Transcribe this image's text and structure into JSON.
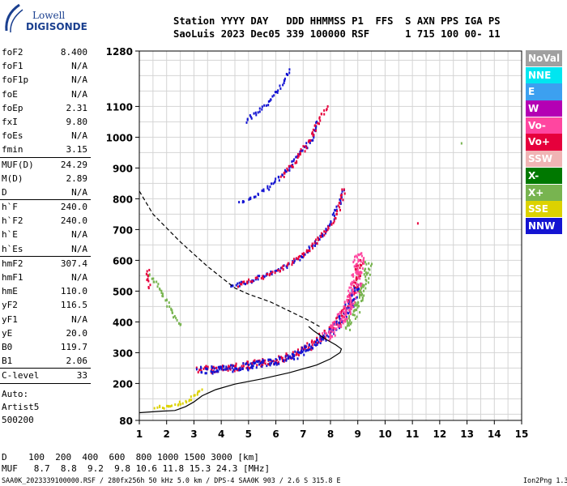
{
  "logo": {
    "line1": "Lowell",
    "line2": "DIGISONDE"
  },
  "header": {
    "line1": "Station YYYY DAY   DDD HHMMSS P1  FFS  S AXN PPS IGA PS",
    "line2": "SaoLuis 2023 Dec05 339 100000 RSF      1 715 100 00- 11"
  },
  "params": [
    {
      "group": [
        {
          "label": "foF2",
          "value": "8.400"
        },
        {
          "label": "foF1",
          "value": "N/A"
        },
        {
          "label": "foF1p",
          "value": "N/A"
        },
        {
          "label": "foE",
          "value": "N/A"
        },
        {
          "label": "foEp",
          "value": "2.31"
        },
        {
          "label": "fxI",
          "value": "9.80"
        },
        {
          "label": "foEs",
          "value": "N/A"
        },
        {
          "label": "fmin",
          "value": "3.15"
        }
      ]
    },
    {
      "group": [
        {
          "label": "MUF(D)",
          "value": "24.29"
        },
        {
          "label": "M(D)",
          "value": "2.89"
        },
        {
          "label": "D",
          "value": "N/A"
        }
      ]
    },
    {
      "group": [
        {
          "label": "h`F",
          "value": "240.0"
        },
        {
          "label": "h`F2",
          "value": "240.0"
        },
        {
          "label": "h`E",
          "value": "N/A"
        },
        {
          "label": "h`Es",
          "value": "N/A"
        }
      ]
    },
    {
      "group": [
        {
          "label": "hmF2",
          "value": "307.4"
        },
        {
          "label": "hmF1",
          "value": "N/A"
        },
        {
          "label": "hmE",
          "value": "110.0"
        },
        {
          "label": "yF2",
          "value": "116.5"
        },
        {
          "label": "yF1",
          "value": "N/A"
        },
        {
          "label": "yE",
          "value": "20.0"
        },
        {
          "label": "B0",
          "value": "119.7"
        },
        {
          "label": "B1",
          "value": "2.06"
        }
      ]
    },
    {
      "group": [
        {
          "label": "C-level",
          "value": "33"
        }
      ]
    }
  ],
  "auto": {
    "line1": "Auto:",
    "line2": "Artist5",
    "line3": "500200"
  },
  "dmuf": {
    "d_line": "D    100  200  400  600  800 1000 1500 3000 [km]",
    "muf_line": "MUF   8.7  8.8  9.2  9.8 10.6 11.8 15.3 24.3 [MHz]"
  },
  "footer": {
    "text": "SAA0K_2023339100000.RSF / 280fx256h 50 kHz 5.0 km / DPS-4 SAA0K 903 / 2.6 S 315.8 E",
    "version": "Ion2Png 1.3.17"
  },
  "legend": [
    {
      "label": "NoVal",
      "color": "#a0a0a0"
    },
    {
      "label": "NNE",
      "color": "#00e6f0"
    },
    {
      "label": "E",
      "color": "#3ca0f0"
    },
    {
      "label": "W",
      "color": "#b400b4"
    },
    {
      "label": "Vo-",
      "color": "#ff46a0"
    },
    {
      "label": "Vo+",
      "color": "#e6003c"
    },
    {
      "label": "SSW",
      "color": "#f0b4b4"
    },
    {
      "label": "X-",
      "color": "#007800"
    },
    {
      "label": "X+",
      "color": "#78b450"
    },
    {
      "label": "SSE",
      "color": "#dcd200"
    },
    {
      "label": "NNW",
      "color": "#1414d2"
    }
  ],
  "chart_data": {
    "type": "scatter",
    "xlim": [
      1,
      15
    ],
    "ylim": [
      80,
      1280
    ],
    "xticks": [
      1,
      2,
      3,
      4,
      5,
      6,
      7,
      8,
      9,
      10,
      11,
      12,
      13,
      14,
      15
    ],
    "yticks": [
      80,
      200,
      300,
      400,
      500,
      600,
      700,
      800,
      900,
      1000,
      1100,
      1280
    ],
    "grid": true,
    "traces": [
      {
        "name": "",
        "color": "#e6003c",
        "spread": 2,
        "points": [
          [
            3.2,
            245
          ],
          [
            4,
            247
          ],
          [
            5,
            258
          ],
          [
            6,
            275
          ],
          [
            6.8,
            295
          ],
          [
            7.2,
            320
          ],
          [
            7.6,
            345
          ],
          [
            8,
            375
          ],
          [
            8.3,
            400
          ],
          [
            8.6,
            440
          ],
          [
            8.8,
            480
          ],
          [
            9.0,
            540
          ],
          [
            9.1,
            600
          ]
        ]
      },
      {
        "name": "",
        "color": "#1414d2",
        "spread": 2,
        "points": [
          [
            3.2,
            242
          ],
          [
            4,
            245
          ],
          [
            5,
            256
          ],
          [
            6,
            272
          ],
          [
            6.8,
            292
          ],
          [
            7.3,
            322
          ],
          [
            7.8,
            350
          ],
          [
            8.2,
            385
          ],
          [
            8.5,
            420
          ],
          [
            8.8,
            470
          ],
          [
            9.0,
            520
          ]
        ]
      },
      {
        "name": "",
        "color": "#ff46a0",
        "spread": 3,
        "points": [
          [
            7.8,
            350
          ],
          [
            8.2,
            380
          ],
          [
            8.5,
            420
          ],
          [
            8.7,
            460
          ],
          [
            8.9,
            500
          ],
          [
            9.0,
            560
          ],
          [
            9.1,
            620
          ]
        ]
      },
      {
        "name": "",
        "color": "#78b450",
        "spread": 2,
        "points": [
          [
            8.6,
            380
          ],
          [
            8.9,
            430
          ],
          [
            9.1,
            480
          ],
          [
            9.3,
            530
          ],
          [
            9.4,
            590
          ]
        ]
      },
      {
        "name": "",
        "color": "#1414d2",
        "spread": 1,
        "points": [
          [
            4.3,
            515
          ],
          [
            5,
            530
          ],
          [
            6,
            565
          ],
          [
            6.9,
            605
          ],
          [
            7.5,
            660
          ],
          [
            8,
            720
          ],
          [
            8.3,
            780
          ],
          [
            8.5,
            830
          ]
        ]
      },
      {
        "name": "",
        "color": "#e6003c",
        "spread": 1,
        "points": [
          [
            4.6,
            520
          ],
          [
            5.5,
            545
          ],
          [
            6.5,
            585
          ],
          [
            7.3,
            640
          ],
          [
            7.9,
            700
          ],
          [
            8.3,
            760
          ],
          [
            8.5,
            830
          ]
        ]
      },
      {
        "name": "",
        "color": "#1414d2",
        "spread": 1,
        "points": [
          [
            4.7,
            785
          ],
          [
            5.2,
            805
          ],
          [
            5.8,
            840
          ],
          [
            6.4,
            890
          ],
          [
            6.8,
            940
          ],
          [
            7.3,
            990
          ],
          [
            7.5,
            1050
          ]
        ]
      },
      {
        "name": "",
        "color": "#e6003c",
        "spread": 1,
        "points": [
          [
            6.2,
            870
          ],
          [
            6.8,
            930
          ],
          [
            7.3,
            1000
          ],
          [
            7.6,
            1060
          ],
          [
            7.9,
            1100
          ]
        ]
      },
      {
        "name": "",
        "color": "#1414d2",
        "spread": 1,
        "points": [
          [
            4.9,
            1050
          ],
          [
            5.3,
            1080
          ],
          [
            5.7,
            1110
          ],
          [
            6.1,
            1155
          ],
          [
            6.4,
            1200
          ],
          [
            6.5,
            1220
          ]
        ]
      },
      {
        "name": "",
        "color": "#dcd200",
        "spread": 1,
        "points": [
          [
            1.6,
            120
          ],
          [
            2.1,
            125
          ],
          [
            2.5,
            135
          ],
          [
            2.8,
            145
          ],
          [
            3.1,
            165
          ],
          [
            3.3,
            180
          ]
        ]
      },
      {
        "name": "",
        "color": "#78b450",
        "spread": 1,
        "points": [
          [
            12.8,
            980
          ],
          [
            1.4,
            555
          ],
          [
            2.5,
            390
          ]
        ]
      },
      {
        "name": "",
        "color": "#e6003c",
        "spread": 1,
        "points": [
          [
            11.2,
            720
          ],
          [
            1.3,
            570
          ],
          [
            1.35,
            510
          ]
        ]
      }
    ],
    "profile_solid": [
      [
        1,
        105
      ],
      [
        1.8,
        110
      ],
      [
        2.3,
        112
      ],
      [
        2.4,
        115
      ],
      [
        2.7,
        125
      ],
      [
        3,
        140
      ],
      [
        3.3,
        160
      ],
      [
        3.8,
        180
      ],
      [
        4.5,
        198
      ],
      [
        5.5,
        215
      ],
      [
        6.5,
        235
      ],
      [
        7.5,
        260
      ],
      [
        8.0,
        280
      ],
      [
        8.35,
        300
      ],
      [
        8.4,
        312
      ],
      [
        8.2,
        325
      ],
      [
        7.8,
        345
      ],
      [
        7.4,
        370
      ],
      [
        7.2,
        385
      ]
    ],
    "profile_dashed": [
      [
        1,
        825
      ],
      [
        1.5,
        750
      ],
      [
        2,
        705
      ],
      [
        2.5,
        660
      ],
      [
        3,
        620
      ],
      [
        3.5,
        580
      ],
      [
        4,
        545
      ],
      [
        4.5,
        510
      ],
      [
        5,
        490
      ],
      [
        5.8,
        465
      ],
      [
        6.5,
        435
      ],
      [
        7.2,
        405
      ],
      [
        7.6,
        385
      ]
    ]
  }
}
